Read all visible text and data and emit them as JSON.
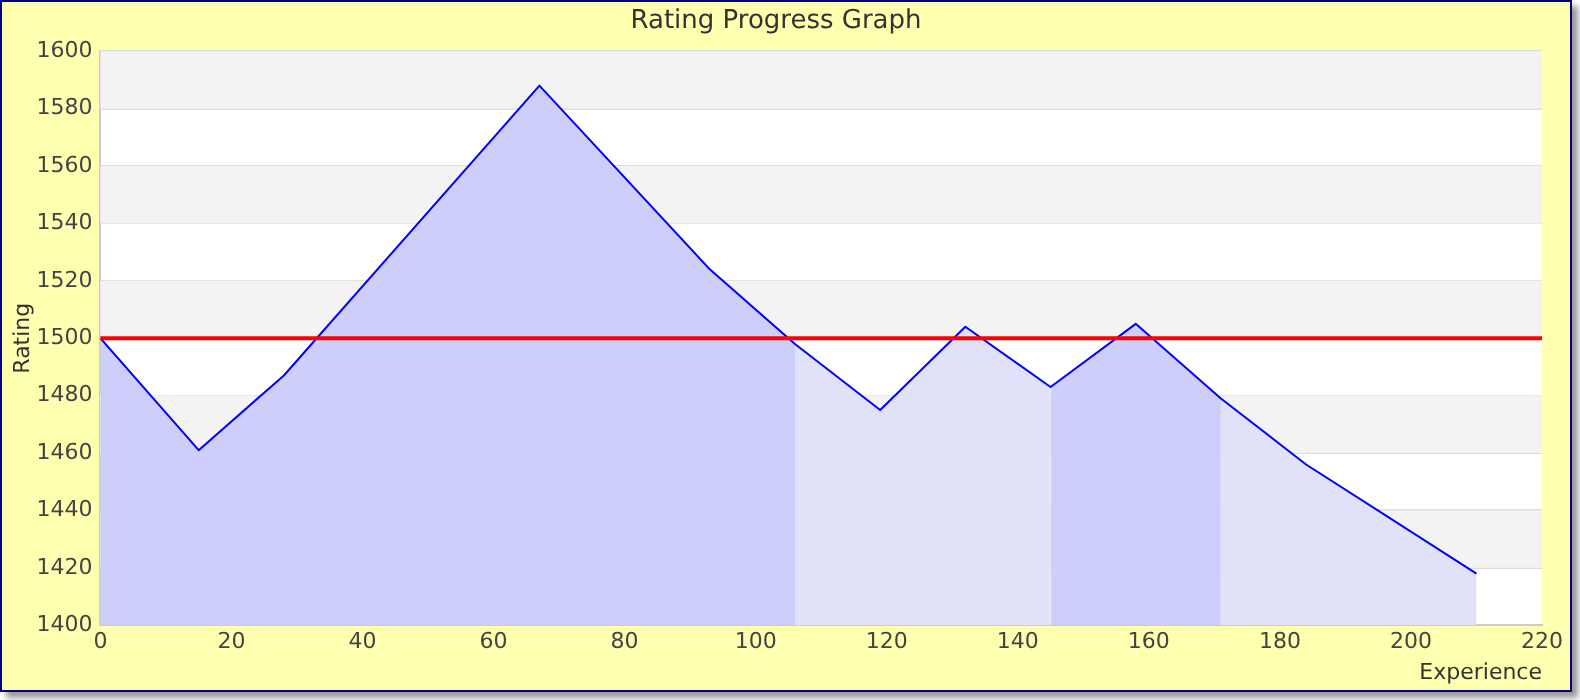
{
  "chart_data": {
    "type": "area",
    "title": "Rating Progress Graph",
    "xlabel": "Experience",
    "ylabel": "Rating",
    "xlim": [
      0,
      220
    ],
    "xticks": [
      0,
      20,
      40,
      60,
      80,
      100,
      120,
      140,
      160,
      180,
      200,
      220
    ],
    "ylim": [
      1400,
      1600
    ],
    "yticks": [
      1400,
      1420,
      1440,
      1460,
      1480,
      1500,
      1520,
      1540,
      1560,
      1580,
      1600
    ],
    "grid": "y",
    "legend": false,
    "series": [
      {
        "color": "#cdcffa",
        "x": [
          0,
          15,
          28,
          67,
          93,
          106
        ],
        "values": [
          1500,
          1461,
          1487,
          1588,
          1524,
          1498
        ]
      },
      {
        "color": "#e1e1fa",
        "x": [
          106,
          119,
          132,
          145
        ],
        "values": [
          1498,
          1475,
          1504,
          1483
        ]
      },
      {
        "color": "#cdcffa",
        "x": [
          145,
          158,
          171
        ],
        "values": [
          1483,
          1505,
          1479
        ]
      },
      {
        "color": "#e1e1fa",
        "x": [
          171,
          184,
          210
        ],
        "values": [
          1479,
          1456,
          1418
        ]
      },
      {
        "type": "line",
        "color": "#0000ff",
        "x": [
          0,
          15,
          28,
          67,
          93,
          106,
          119,
          132,
          145,
          158,
          171,
          184,
          210
        ],
        "values": [
          1500,
          1461,
          1487,
          1588,
          1524,
          1498,
          1475,
          1504,
          1483,
          1505,
          1479,
          1456,
          1418
        ]
      }
    ],
    "ref_lines": [
      {
        "axis": "y",
        "value": 1500,
        "color": "#ff0000"
      }
    ]
  }
}
